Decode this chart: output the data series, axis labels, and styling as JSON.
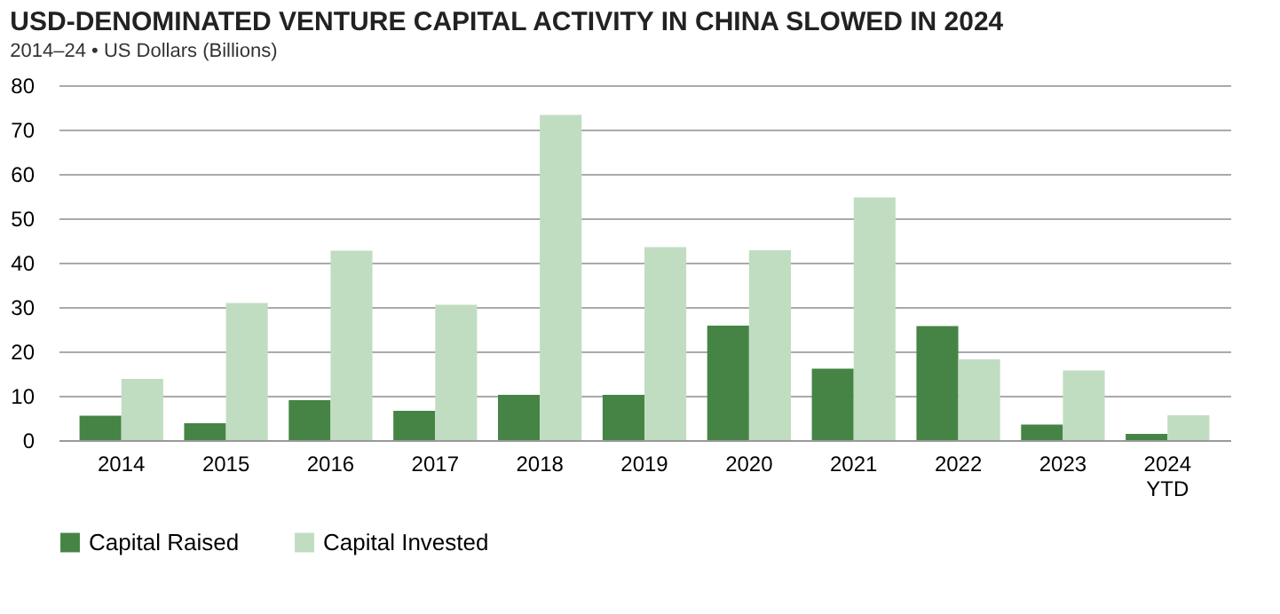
{
  "chart_data": {
    "type": "bar",
    "title": "USD-DENOMINATED VENTURE CAPITAL ACTIVITY IN CHINA SLOWED IN 2024",
    "subtitle": "2014–24 • US Dollars (Billions)",
    "categories": [
      "2014",
      "2015",
      "2016",
      "2017",
      "2018",
      "2019",
      "2020",
      "2021",
      "2022",
      "2023",
      "2024\nYTD"
    ],
    "series": [
      {
        "name": "Capital Raised",
        "color": "#468446",
        "values": [
          5.5,
          3.8,
          9.0,
          6.6,
          10.2,
          10.2,
          25.8,
          16.1,
          25.7,
          3.5,
          1.4
        ]
      },
      {
        "name": "Capital Invested",
        "color": "#c1ddc1",
        "values": [
          13.8,
          30.9,
          42.7,
          30.5,
          73.3,
          43.5,
          42.8,
          54.7,
          18.2,
          15.7,
          5.6
        ]
      }
    ],
    "ylim": [
      0,
      80
    ],
    "yticks": [
      0,
      10,
      20,
      30,
      40,
      50,
      60,
      70,
      80
    ],
    "grid": "y",
    "legend": "bottom"
  }
}
